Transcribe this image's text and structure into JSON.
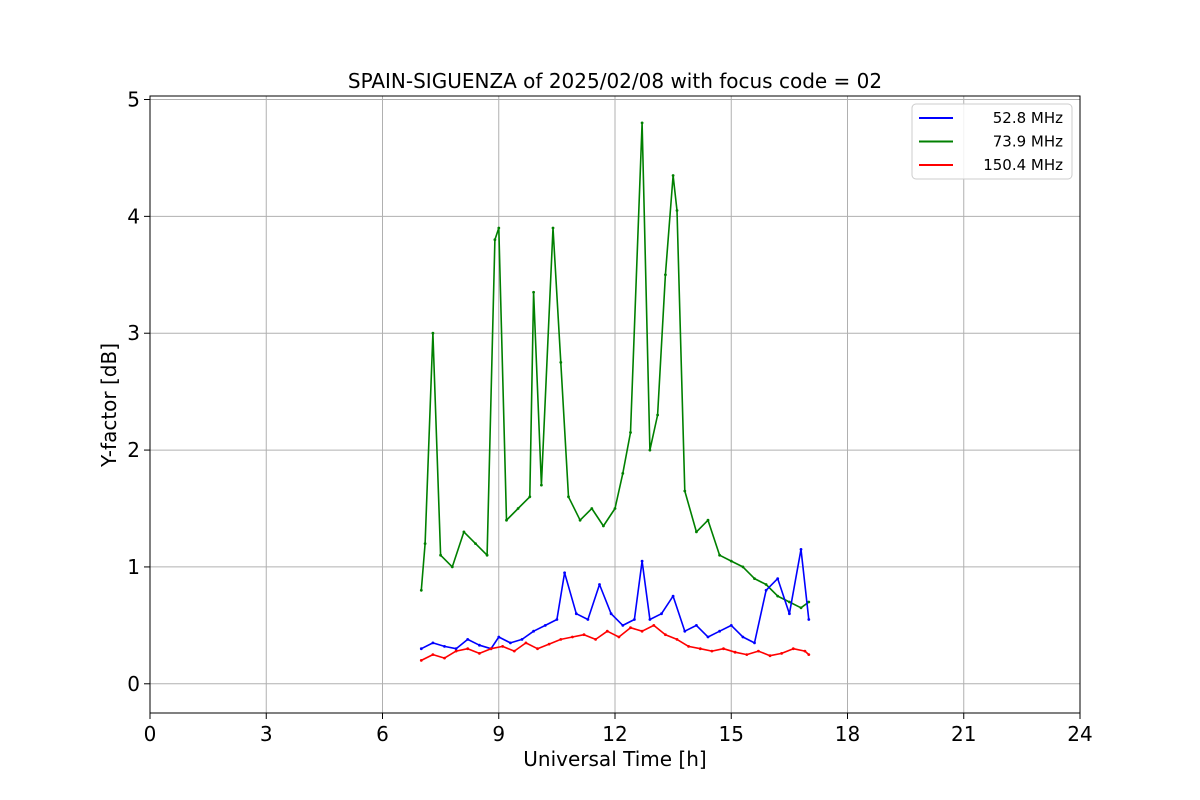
{
  "chart_data": {
    "type": "line",
    "title": "SPAIN-SIGUENZA of 2025/02/08 with focus code = 02",
    "xlabel": "Universal Time [h]",
    "ylabel": "Y-factor [dB]",
    "xlim": [
      0,
      24
    ],
    "ylim": [
      -0.25,
      5.03
    ],
    "xticks": [
      "0",
      "3",
      "6",
      "9",
      "12",
      "15",
      "18",
      "21",
      "24"
    ],
    "yticks": [
      "0",
      "1",
      "2",
      "3",
      "4",
      "5"
    ],
    "grid": true,
    "legend_position": "top-right",
    "series": [
      {
        "name": " 52.8 MHz",
        "color": "#0000ff",
        "x": [
          7.0,
          7.3,
          7.6,
          7.9,
          8.2,
          8.5,
          8.8,
          9.0,
          9.3,
          9.6,
          9.9,
          10.2,
          10.5,
          10.7,
          11.0,
          11.3,
          11.6,
          11.9,
          12.2,
          12.5,
          12.7,
          12.9,
          13.2,
          13.5,
          13.8,
          14.1,
          14.4,
          14.7,
          15.0,
          15.3,
          15.6,
          15.9,
          16.2,
          16.5,
          16.8,
          17.0
        ],
        "y": [
          0.3,
          0.35,
          0.32,
          0.3,
          0.38,
          0.33,
          0.3,
          0.4,
          0.35,
          0.38,
          0.45,
          0.5,
          0.55,
          0.95,
          0.6,
          0.55,
          0.85,
          0.6,
          0.5,
          0.55,
          1.05,
          0.55,
          0.6,
          0.75,
          0.45,
          0.5,
          0.4,
          0.45,
          0.5,
          0.4,
          0.35,
          0.8,
          0.9,
          0.6,
          1.15,
          0.55
        ]
      },
      {
        "name": " 73.9 MHz",
        "color": "#008000",
        "x": [
          7.0,
          7.1,
          7.3,
          7.5,
          7.8,
          8.1,
          8.4,
          8.7,
          8.9,
          9.0,
          9.2,
          9.5,
          9.8,
          9.9,
          10.1,
          10.4,
          10.6,
          10.8,
          11.1,
          11.4,
          11.7,
          12.0,
          12.2,
          12.4,
          12.7,
          12.9,
          13.1,
          13.3,
          13.5,
          13.6,
          13.8,
          14.1,
          14.4,
          14.7,
          15.0,
          15.3,
          15.6,
          15.9,
          16.2,
          16.5,
          16.8,
          17.0
        ],
        "y": [
          0.8,
          1.2,
          3.0,
          1.1,
          1.0,
          1.3,
          1.2,
          1.1,
          3.8,
          3.9,
          1.4,
          1.5,
          1.6,
          3.35,
          1.7,
          3.9,
          2.75,
          1.6,
          1.4,
          1.5,
          1.35,
          1.5,
          1.8,
          2.15,
          4.8,
          2.0,
          2.3,
          3.5,
          4.35,
          4.05,
          1.65,
          1.3,
          1.4,
          1.1,
          1.05,
          1.0,
          0.9,
          0.85,
          0.75,
          0.7,
          0.65,
          0.7
        ]
      },
      {
        "name": "150.4 MHz",
        "color": "#ff0000",
        "x": [
          7.0,
          7.3,
          7.6,
          7.9,
          8.2,
          8.5,
          8.8,
          9.1,
          9.4,
          9.7,
          10.0,
          10.3,
          10.6,
          10.9,
          11.2,
          11.5,
          11.8,
          12.1,
          12.4,
          12.7,
          13.0,
          13.3,
          13.6,
          13.9,
          14.2,
          14.5,
          14.8,
          15.1,
          15.4,
          15.7,
          16.0,
          16.3,
          16.6,
          16.9,
          17.0
        ],
        "y": [
          0.2,
          0.25,
          0.22,
          0.28,
          0.3,
          0.26,
          0.3,
          0.32,
          0.28,
          0.35,
          0.3,
          0.34,
          0.38,
          0.4,
          0.42,
          0.38,
          0.45,
          0.4,
          0.48,
          0.45,
          0.5,
          0.42,
          0.38,
          0.32,
          0.3,
          0.28,
          0.3,
          0.27,
          0.25,
          0.28,
          0.24,
          0.26,
          0.3,
          0.28,
          0.25
        ]
      }
    ]
  }
}
